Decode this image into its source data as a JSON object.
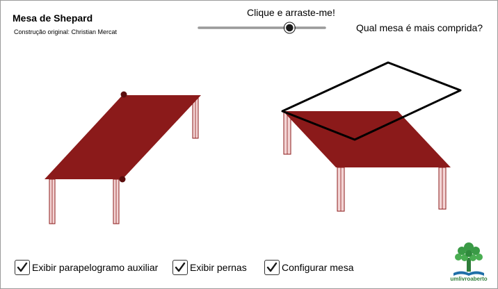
{
  "header": {
    "title": "Mesa de Shepard",
    "subtitle": "Construção original: Christian Mercat"
  },
  "slider": {
    "label": "Clique e arraste-me!",
    "value": 0.72
  },
  "question": "Qual mesa é mais comprida?",
  "checkboxes": [
    {
      "label": "Exibir parapelogramo auxiliar",
      "checked": true
    },
    {
      "label": "Exibir pernas",
      "checked": true
    },
    {
      "label": "Configurar mesa",
      "checked": true
    }
  ],
  "logo": {
    "text": "umlivroaberto"
  },
  "colors": {
    "table": "#8b1a1a",
    "leg_fill": "#f3d5d5",
    "leg_stroke": "#8b1a1a",
    "outline": "#000000",
    "slider_track": "#9a9a9a",
    "logo_green": "#2f7d3a"
  }
}
